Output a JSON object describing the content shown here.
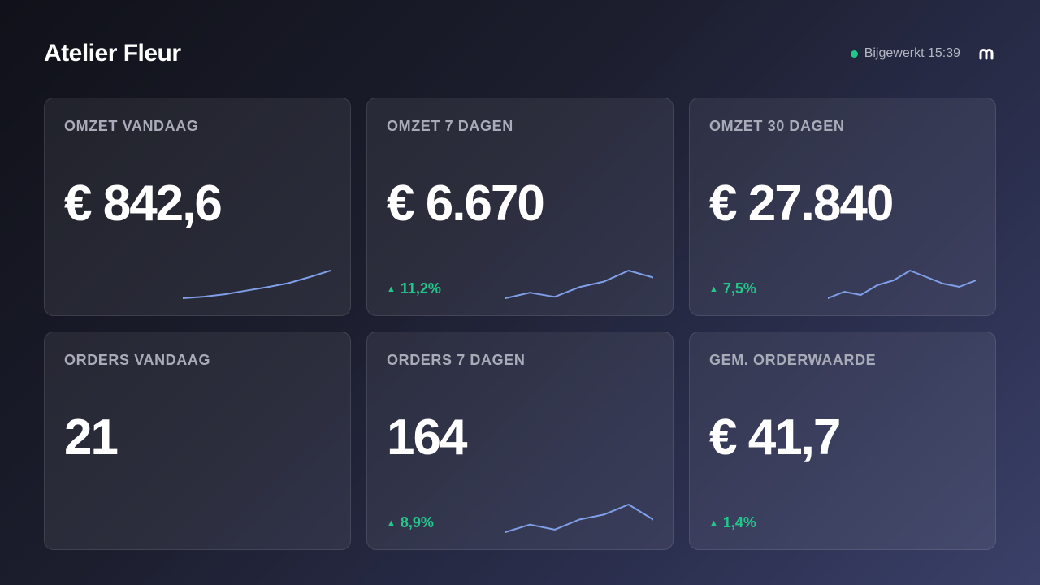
{
  "header": {
    "title": "Atelier Fleur",
    "status_text": "Bijgewerkt 15:39",
    "status_color": "#20c98a",
    "brand_icon": "m-logo-icon"
  },
  "colors": {
    "positive": "#22c78a",
    "sparkline": "#7f9fe8"
  },
  "cards": [
    {
      "label": "OMZET VANDAAG",
      "value": "€ 842,6",
      "change": "",
      "spark": [
        10,
        13,
        18,
        25,
        32,
        40,
        52,
        65
      ]
    },
    {
      "label": "OMZET 7 DAGEN",
      "value": "€ 6.670",
      "change": "11,2%",
      "trend": "up",
      "spark": [
        40,
        44,
        41,
        48,
        52,
        60,
        55
      ]
    },
    {
      "label": "OMZET 30 DAGEN",
      "value": "€ 27.840",
      "change": "7,5%",
      "trend": "up",
      "spark": [
        40,
        44,
        42,
        48,
        51,
        57,
        53,
        49,
        47,
        51
      ]
    },
    {
      "label": "ORDERS VANDAAG",
      "value": "21",
      "change": ""
    },
    {
      "label": "ORDERS 7 DAGEN",
      "value": "164",
      "change": "8,9%",
      "trend": "up",
      "spark": [
        40,
        43,
        41,
        45,
        47,
        51,
        45
      ]
    },
    {
      "label": "GEM. ORDERWAARDE",
      "value": "€ 41,7",
      "change": "1,4%",
      "trend": "up"
    }
  ]
}
